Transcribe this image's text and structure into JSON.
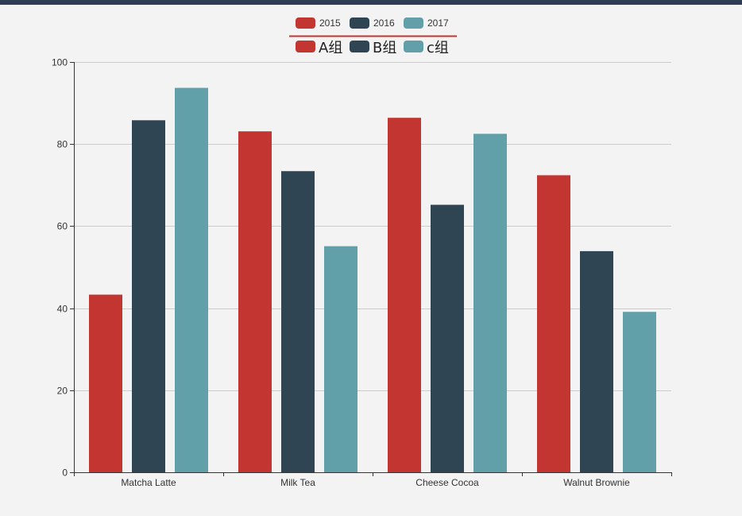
{
  "colors": {
    "top_bar": "#2e3d52",
    "background": "#f3f3f3",
    "series_red": "#c23531",
    "series_dark": "#2f4554",
    "series_teal": "#61a0a8",
    "grid_line": "#cccccc",
    "axis_line": "#333333",
    "legend_divider": "#c23531"
  },
  "legend_primary": {
    "items": [
      {
        "label": "2015",
        "color": "#c23531"
      },
      {
        "label": "2016",
        "color": "#2f4554"
      },
      {
        "label": "2017",
        "color": "#61a0a8"
      }
    ]
  },
  "legend_secondary": {
    "items": [
      {
        "label": "A组",
        "color": "#c23531"
      },
      {
        "label": "B组",
        "color": "#2f4554"
      },
      {
        "label": "c组",
        "color": "#61a0a8"
      }
    ]
  },
  "chart_data": {
    "type": "bar",
    "categories": [
      "Matcha Latte",
      "Milk Tea",
      "Cheese Cocoa",
      "Walnut Brownie"
    ],
    "series": [
      {
        "name": "2015",
        "values": [
          43.3,
          83.1,
          86.4,
          72.4
        ]
      },
      {
        "name": "2016",
        "values": [
          85.8,
          73.4,
          65.2,
          53.9
        ]
      },
      {
        "name": "2017",
        "values": [
          93.7,
          55.1,
          82.5,
          39.1
        ]
      }
    ],
    "y_ticks": [
      "0",
      "20",
      "40",
      "60",
      "80",
      "100"
    ],
    "ylim": [
      0,
      100
    ],
    "grid": true,
    "legend_position": "top-center"
  }
}
